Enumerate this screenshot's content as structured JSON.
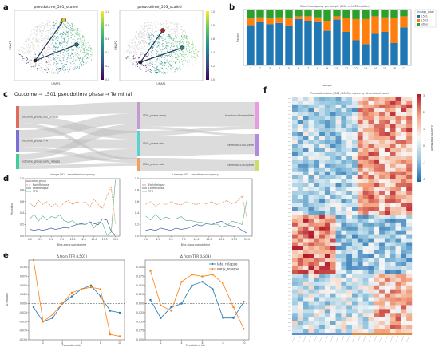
{
  "figure": {
    "panels": [
      "a",
      "b",
      "c",
      "d",
      "e",
      "f"
    ]
  },
  "panel_a": {
    "umap_left_title": "pseudotime_501_scaled",
    "umap_right_title": "pseudotime_503_scaled",
    "xlabel": "UMAP1",
    "ylabel": "UMAP2",
    "colorbar_ticks": [
      "1.0",
      "0.8",
      "0.6",
      "0.4",
      "0.2",
      "0.0"
    ],
    "colors": {
      "low": "#3b1f5c",
      "mid": "#2f9a8a",
      "high": "#e8e41f",
      "background": "#c9c9c9"
    }
  },
  "panel_b": {
    "title": "Branch occupancy per sample (L501 vs L503 vs other)",
    "xlabel": "sample",
    "ylabel": "fraction",
    "legend_title": "lineage_label",
    "chart_data": {
      "type": "bar",
      "stacked": true,
      "categories": [
        "1",
        "2",
        "3",
        "4",
        "5",
        "6",
        "7",
        "8",
        "9",
        "10",
        "11",
        "12",
        "13",
        "14",
        "15",
        "16",
        "17"
      ],
      "series": [
        {
          "name": "L501",
          "color": "#1f77b4",
          "values": [
            0.72,
            0.78,
            0.74,
            0.76,
            0.7,
            0.83,
            0.8,
            0.79,
            0.62,
            0.82,
            0.6,
            0.45,
            0.38,
            0.58,
            0.6,
            0.4,
            0.68
          ]
        },
        {
          "name": "L503",
          "color": "#ff7f0e",
          "values": [
            0.12,
            0.08,
            0.1,
            0.1,
            0.14,
            0.05,
            0.08,
            0.07,
            0.18,
            0.06,
            0.25,
            0.38,
            0.45,
            0.3,
            0.26,
            0.45,
            0.2
          ]
        },
        {
          "name": "other",
          "color": "#2ca02c",
          "values": [
            0.16,
            0.14,
            0.16,
            0.14,
            0.16,
            0.12,
            0.12,
            0.14,
            0.2,
            0.12,
            0.15,
            0.17,
            0.17,
            0.12,
            0.14,
            0.15,
            0.12
          ]
        }
      ],
      "ylim": [
        0,
        1
      ]
    }
  },
  "panel_c": {
    "title": "Outcome → L501 pseudotime phase → Terminal",
    "left_nodes": [
      "outcome_group::late_relapse",
      "outcome_group::TFR",
      "outcome_group::early_relapse"
    ],
    "middle_nodes": [
      "L501_phase::early",
      "L501_phase::mid",
      "L501_phase::late"
    ],
    "right_nodes": [
      "terminal::intermediate",
      "terminal::L501_term",
      "terminal::L503_term"
    ],
    "left_colors": [
      "#e06b5a",
      "#7a6fd6",
      "#3ecf9a"
    ],
    "middle_colors": [
      "#c39bd3",
      "#5fd0d0",
      "#f0a060"
    ],
    "right_colors": [
      "#e99be0",
      "#b48ae0",
      "#c8e06a"
    ]
  },
  "panel_d": {
    "left_title": "Lineage 501 – smoothed occupancy",
    "right_title": "Lineage 503 – smoothed occupancy",
    "xlabel": "Bins along pseudotime",
    "ylabel": "Proportion",
    "legend_title": "outcome_group",
    "legend": [
      "EarlyRelapse",
      "LateRelapse",
      "TFR"
    ],
    "xticks": [
      "0.0",
      "2.5",
      "5.0",
      "7.5",
      "10.0",
      "12.5",
      "15.0",
      "17.5",
      "20.0"
    ],
    "yticks": [
      "0.0",
      "0.2",
      "0.4",
      "0.6",
      "0.8",
      "1.0"
    ],
    "chart_data": [
      {
        "type": "line",
        "x": [
          0,
          1,
          2,
          3,
          4,
          5,
          6,
          7,
          8,
          9,
          10,
          11,
          12,
          13,
          14,
          15,
          16,
          17,
          18,
          19,
          20
        ],
        "ylim": [
          0,
          1
        ],
        "series": [
          {
            "name": "EarlyRelapse",
            "color": "#e07b3a",
            "dash": true,
            "values": [
              0.58,
              0.5,
              0.62,
              0.55,
              0.6,
              0.52,
              0.56,
              0.5,
              0.58,
              0.62,
              0.55,
              0.6,
              0.57,
              0.6,
              0.5,
              0.64,
              0.55,
              0.48,
              0.7,
              0.85,
              0.2
            ]
          },
          {
            "name": "LateRelapse",
            "color": "#2a4d8f",
            "dash": false,
            "values": [
              0.12,
              0.1,
              0.12,
              0.1,
              0.12,
              0.14,
              0.12,
              0.13,
              0.15,
              0.14,
              0.18,
              0.2,
              0.22,
              0.2,
              0.25,
              0.22,
              0.2,
              0.3,
              0.28,
              0.08,
              0.02
            ]
          },
          {
            "name": "TFR",
            "color": "#4daf7c",
            "dash": false,
            "values": [
              0.3,
              0.38,
              0.26,
              0.35,
              0.28,
              0.34,
              0.32,
              0.37,
              0.27,
              0.24,
              0.27,
              0.2,
              0.21,
              0.2,
              0.25,
              0.14,
              0.25,
              0.22,
              0.02,
              0.07,
              0.98
            ]
          }
        ]
      },
      {
        "type": "line",
        "x": [
          0,
          1,
          2,
          3,
          4,
          5,
          6,
          7,
          8,
          9,
          10,
          11,
          12,
          13,
          14,
          15,
          16,
          17,
          18,
          19,
          20
        ],
        "ylim": [
          0,
          1
        ],
        "series": [
          {
            "name": "EarlyRelapse",
            "color": "#e07b3a",
            "dash": true,
            "values": [
              0.55,
              0.6,
              0.52,
              0.58,
              0.55,
              0.6,
              0.56,
              0.54,
              0.6,
              0.57,
              0.55,
              0.58,
              0.56,
              0.6,
              0.55,
              0.58,
              0.62,
              0.56,
              0.6,
              0.7,
              0.3
            ]
          },
          {
            "name": "LateRelapse",
            "color": "#2a4d8f",
            "dash": false,
            "values": [
              0.1,
              0.12,
              0.1,
              0.14,
              0.12,
              0.1,
              0.14,
              0.12,
              0.13,
              0.16,
              0.2,
              0.18,
              0.22,
              0.2,
              0.24,
              0.26,
              0.2,
              0.18,
              0.16,
              0.1,
              0.05
            ]
          },
          {
            "name": "TFR",
            "color": "#4daf7c",
            "dash": false,
            "values": [
              0.35,
              0.28,
              0.38,
              0.28,
              0.33,
              0.3,
              0.3,
              0.34,
              0.27,
              0.27,
              0.25,
              0.24,
              0.22,
              0.2,
              0.21,
              0.16,
              0.18,
              0.26,
              0.24,
              0.2,
              0.65
            ]
          }
        ]
      }
    ]
  },
  "panel_e": {
    "left_title": "Δ from TFR (L501)",
    "right_title": "Δ from TFR (L503)",
    "xlabel": "Pseudotime bin",
    "ylabel": "Δ fraction",
    "legend": [
      "late_relapse",
      "early_relapse"
    ],
    "xticks": [
      "2",
      "4",
      "6",
      "8",
      "10"
    ],
    "yticks": [
      "0.100",
      "0.075",
      "0.050",
      "0.025",
      "0.000",
      "-0.025",
      "-0.050",
      "-0.075",
      "-0.100"
    ],
    "chart_data": [
      {
        "type": "line",
        "x": [
          1,
          2,
          3,
          4,
          5,
          6,
          7,
          8,
          9,
          10
        ],
        "ylim": [
          -0.1,
          0.12
        ],
        "series": [
          {
            "name": "late_relapse",
            "color": "#1f77b4",
            "values": [
              -0.01,
              -0.05,
              -0.04,
              0.0,
              0.02,
              0.04,
              0.05,
              0.02,
              -0.02,
              -0.025
            ]
          },
          {
            "name": "early_relapse",
            "color": "#ff7f0e",
            "values": [
              0.12,
              -0.05,
              -0.03,
              0.0,
              0.03,
              0.04,
              0.045,
              0.04,
              -0.085,
              -0.09
            ]
          }
        ]
      },
      {
        "type": "line",
        "x": [
          1,
          2,
          3,
          4,
          5,
          6,
          7,
          8,
          9,
          10
        ],
        "ylim": [
          -0.1,
          0.12
        ],
        "series": [
          {
            "name": "late_relapse",
            "color": "#1f77b4",
            "values": [
              0.01,
              -0.04,
              -0.01,
              0.0,
              0.05,
              0.06,
              0.04,
              -0.04,
              -0.04,
              0.005
            ]
          },
          {
            "name": "early_relapse",
            "color": "#ff7f0e",
            "values": [
              0.09,
              -0.005,
              -0.02,
              0.06,
              0.08,
              0.075,
              0.08,
              0.055,
              -0.01,
              -0.07
            ]
          }
        ]
      }
    ]
  },
  "panel_f": {
    "title": "Pseudotime bins (L501 / L503) – zscore by dimensional panel",
    "colorbar_label": "z-scored expression",
    "colorbar_ticks": [
      "3",
      "2",
      "1",
      "0",
      "-1",
      "-2"
    ],
    "colors": {
      "high": "#b2182b",
      "mid": "#f7f7f7",
      "low": "#2166ac"
    },
    "rows": 60,
    "cols": 22
  }
}
